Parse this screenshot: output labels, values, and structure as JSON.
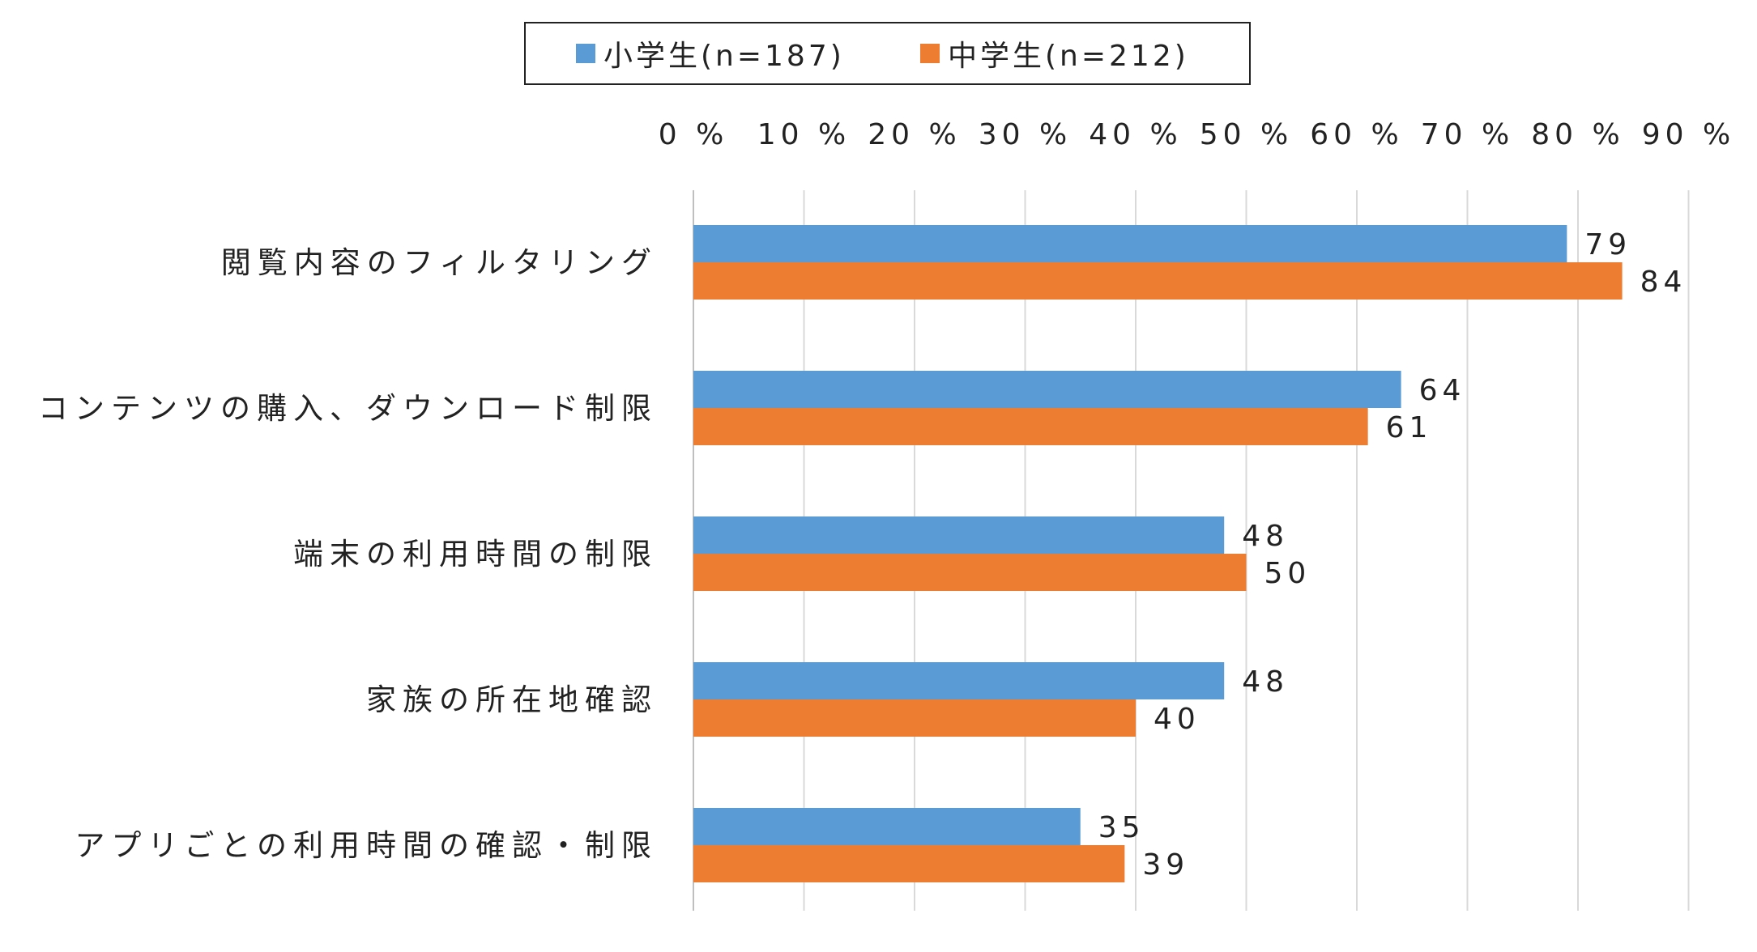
{
  "chart_data": {
    "type": "bar",
    "orientation": "horizontal",
    "categories": [
      "閲覧内容のフィルタリング",
      "コンテンツの購入、ダウンロード制限",
      "端末の利用時間の制限",
      "家族の所在地確認",
      "アプリごとの利用時間の確認・制限"
    ],
    "series": [
      {
        "name": "小学生(n=187)",
        "color": "#5b9bd5",
        "values": [
          79,
          64,
          48,
          48,
          35
        ]
      },
      {
        "name": "中学生(n=212)",
        "color": "#ed7d31",
        "values": [
          84,
          61,
          50,
          40,
          39
        ]
      }
    ],
    "x_ticks": [
      "0 %",
      "10 %",
      "20 %",
      "30 %",
      "40 %",
      "50 %",
      "60 %",
      "70 %",
      "80 %",
      "90 %"
    ],
    "xlim": [
      0,
      90
    ],
    "grid": true,
    "legend_position": "top",
    "tick_position": "top"
  }
}
